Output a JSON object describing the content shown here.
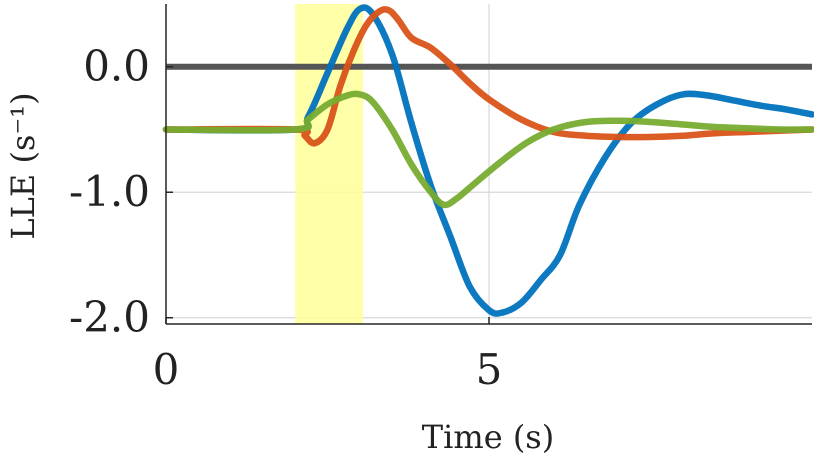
{
  "chart_data": {
    "type": "line",
    "title": "",
    "xlabel": "Time (s)",
    "ylabel": "LLE (s⁻¹)",
    "xlim": [
      0,
      10
    ],
    "ylim": [
      -2.05,
      0.5
    ],
    "x_ticks": [
      {
        "value": 0,
        "label": "0"
      },
      {
        "value": 5,
        "label": "5"
      }
    ],
    "y_ticks": [
      {
        "value": 0,
        "label": "0.0"
      },
      {
        "value": -1,
        "label": "-1.0"
      },
      {
        "value": -2,
        "label": "-2.0"
      }
    ],
    "grid": true,
    "highlight_band": {
      "x_start": 2.0,
      "x_end": 3.05,
      "color": "#ffff99"
    },
    "reference_line": {
      "y": 0,
      "color": "#555555"
    },
    "series": [
      {
        "color": "#0072bd",
        "x": [
          0,
          2.0,
          2.2,
          2.5,
          2.8,
          3.0,
          3.2,
          3.5,
          3.8,
          4.1,
          4.4,
          4.7,
          5.0,
          5.2,
          5.5,
          5.8,
          6.1,
          6.4,
          6.8,
          7.2,
          7.6,
          8.0,
          8.4,
          8.8,
          9.2,
          9.6,
          10.0
        ],
        "y": [
          -0.5,
          -0.5,
          -0.4,
          -0.05,
          0.3,
          0.46,
          0.42,
          0.1,
          -0.45,
          -0.95,
          -1.35,
          -1.75,
          -1.94,
          -1.96,
          -1.88,
          -1.7,
          -1.5,
          -1.1,
          -0.72,
          -0.45,
          -0.3,
          -0.22,
          -0.23,
          -0.27,
          -0.31,
          -0.34,
          -0.38
        ]
      },
      {
        "color": "#d95319",
        "x": [
          0,
          2.0,
          2.15,
          2.3,
          2.5,
          2.7,
          2.9,
          3.1,
          3.3,
          3.45,
          3.6,
          3.8,
          4.1,
          4.4,
          4.7,
          5.0,
          5.5,
          6.0,
          6.5,
          7.0,
          7.5,
          8.0,
          8.5,
          9.0,
          9.5,
          10.0
        ],
        "y": [
          -0.5,
          -0.5,
          -0.55,
          -0.61,
          -0.5,
          -0.15,
          0.12,
          0.33,
          0.44,
          0.45,
          0.37,
          0.23,
          0.15,
          0.02,
          -0.13,
          -0.26,
          -0.42,
          -0.52,
          -0.55,
          -0.56,
          -0.56,
          -0.55,
          -0.53,
          -0.52,
          -0.51,
          -0.5
        ]
      },
      {
        "color": "#77ac30",
        "x": [
          0,
          2.0,
          2.2,
          2.5,
          2.8,
          3.0,
          3.2,
          3.5,
          3.8,
          4.1,
          4.3,
          4.5,
          4.8,
          5.2,
          5.6,
          6.0,
          6.5,
          7.0,
          7.5,
          8.0,
          8.5,
          9.0,
          9.5,
          10.0
        ],
        "y": [
          -0.5,
          -0.5,
          -0.42,
          -0.3,
          -0.23,
          -0.22,
          -0.28,
          -0.5,
          -0.78,
          -1.0,
          -1.1,
          -1.05,
          -0.92,
          -0.75,
          -0.6,
          -0.5,
          -0.44,
          -0.43,
          -0.44,
          -0.46,
          -0.48,
          -0.49,
          -0.5,
          -0.5
        ]
      }
    ]
  }
}
